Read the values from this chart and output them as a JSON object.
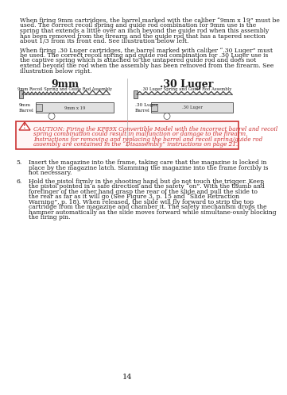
{
  "bg_color": "#ffffff",
  "text_color": "#1a1a1a",
  "red_color": "#cc3333",
  "page_number": "14",
  "para1": "When firing 9mm cartridges, the barrel marked with the caliber “9mm x 19” must be used. The correct recoil spring and guide rod combination for 9mm use is the spring that extends a little over an inch beyond the guide rod when this assembly has been removed from the firearm and the guide rod that has a tapered section about 1/3 from its front end. See illustration below left.",
  "para2": "When firing .30 Luger cartridges, the barrel marked with caliber “.30 Luger” must be used. The correct recoil spring and guide rod combination for .30 Luger use is the captive spring which is attached to the untapered guide rod and does not extend beyond the rod when the assembly has been removed from the firearm. See illustration below right.",
  "col1_title": "9mm",
  "col1_subtitle": "9mm Recoil Spring and Guide Rod Assembly",
  "col1_barrel_label": "9mm\nBarrel",
  "col1_barrel_text": "9mm x 19",
  "col2_title": ".30 Luger",
  "col2_subtitle": ".30 Luger Spring and Guide Rod Assembly",
  "col2_barrel_label": ".30 Luger\nBarrel",
  "col2_barrel_text": ".30 Luger",
  "caution_text": "CAUTION: Firing the KP89X Convertible Model with the incorrect barrel and recoil spring combination could result in malfunction or damage to the firearm. Instructions for removing and replacing the barrel and recoil spring/guide rod assembly are contained in the “Disassembly” instructions on page 21.",
  "item5": "Insert the magazine into the frame, taking care that the magazine is locked in place by the magazine latch. Slamming the magazine into the frame forcibly is not necessary.",
  "item6_b1": "Hold the pistol firmly in the shooting hand but ",
  "item6_red": "do not touch the trigger. Keep the pistol pointed in a safe direction and the safety “on”.",
  "item6_b2": " With the thumb and forefinger of the other hand grasp the ",
  "item6_ul": "rear",
  "item6_b3": " of the slide and pull the slide to the rear as far as it will go (See Figure 3, p. 15 and “Slide Retraction Warning”, p. 18). When released, the slide will fly forward to strip the top cartridge from the magazine and chamber it. The safety mechanism drops the hammer automatically as the slide moves forward while simultane-ously blocking the firing pin."
}
